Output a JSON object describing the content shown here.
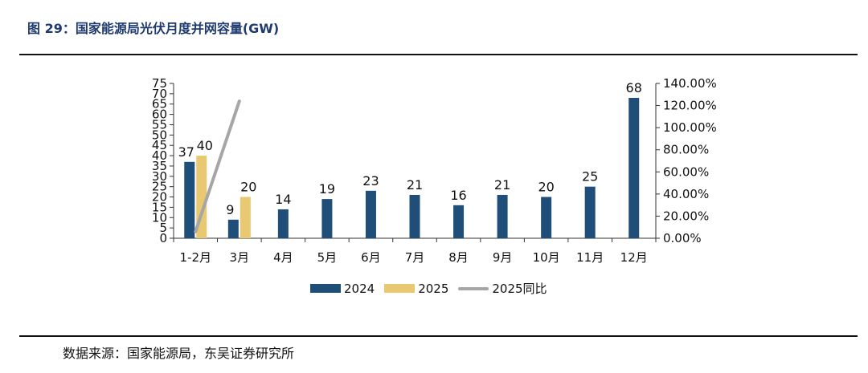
{
  "figure": {
    "title": "图 29：国家能源局光伏月度并网容量(GW)",
    "source": "数据来源：国家能源局，东吴证券研究所"
  },
  "colors": {
    "series_2024": "#1f4e79",
    "series_2025": "#e8c870",
    "series_yoy": "#a6a6a6",
    "rule": "#111111",
    "title": "#1f3a6e"
  },
  "chart_data": {
    "type": "bar",
    "title": "",
    "xlabel": "",
    "ylabel": "",
    "categories": [
      "1-2月",
      "3月",
      "4月",
      "5月",
      "6月",
      "7月",
      "8月",
      "9月",
      "10月",
      "11月",
      "12月"
    ],
    "series": [
      {
        "name": "2024",
        "type": "bar",
        "axis": "left",
        "values": [
          37,
          9,
          14,
          19,
          23,
          21,
          16,
          21,
          20,
          25,
          68
        ],
        "labels": [
          "37",
          "9",
          "14",
          "19",
          "23",
          "21",
          "16",
          "21",
          "20",
          "25",
          "68"
        ]
      },
      {
        "name": "2025",
        "type": "bar",
        "axis": "left",
        "values": [
          40,
          20,
          null,
          null,
          null,
          null,
          null,
          null,
          null,
          null,
          null
        ],
        "labels": [
          "40",
          "20",
          "",
          "",
          "",
          "",
          "",
          "",
          "",
          "",
          ""
        ]
      },
      {
        "name": "2025同比",
        "type": "line",
        "axis": "right",
        "values": [
          0.06,
          1.24,
          null,
          null,
          null,
          null,
          null,
          null,
          null,
          null,
          null
        ]
      }
    ],
    "ylim": [
      0,
      75
    ],
    "y_ticks": [
      "0",
      "5",
      "10",
      "15",
      "20",
      "25",
      "30",
      "35",
      "40",
      "45",
      "50",
      "55",
      "60",
      "65",
      "70",
      "75"
    ],
    "y2lim": [
      0,
      1.4
    ],
    "y2_ticks": [
      "0.00%",
      "20.00%",
      "40.00%",
      "60.00%",
      "80.00%",
      "100.00%",
      "120.00%",
      "140.00%"
    ],
    "grid": false,
    "legend_position": "bottom"
  }
}
